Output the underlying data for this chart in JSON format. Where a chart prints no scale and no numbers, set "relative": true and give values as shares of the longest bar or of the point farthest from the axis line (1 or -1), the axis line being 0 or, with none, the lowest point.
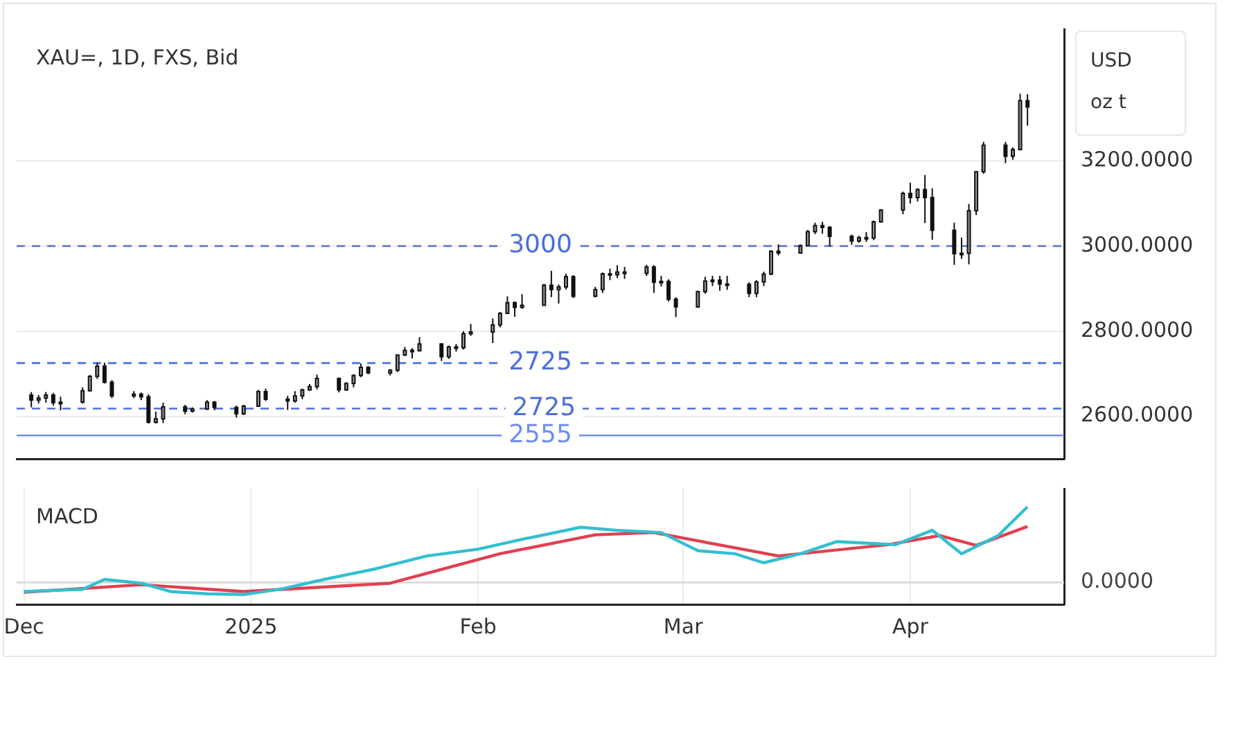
{
  "chart_data": [
    {
      "type": "candlestick",
      "title": "XAU=, 1D, FXS, Bid",
      "ylabel": "USD oz t",
      "x": [
        "2024-12-02",
        "2024-12-03",
        "2024-12-04",
        "2024-12-05",
        "2024-12-06",
        "2024-12-09",
        "2024-12-10",
        "2024-12-11",
        "2024-12-12",
        "2024-12-13",
        "2024-12-16",
        "2024-12-17",
        "2024-12-18",
        "2024-12-19",
        "2024-12-20",
        "2024-12-23",
        "2024-12-24",
        "2024-12-26",
        "2024-12-27",
        "2024-12-30",
        "2024-12-31",
        "2025-01-02",
        "2025-01-03",
        "2025-01-06",
        "2025-01-07",
        "2025-01-08",
        "2025-01-09",
        "2025-01-10",
        "2025-01-13",
        "2025-01-14",
        "2025-01-15",
        "2025-01-16",
        "2025-01-17",
        "2025-01-20",
        "2025-01-21",
        "2025-01-22",
        "2025-01-23",
        "2025-01-24",
        "2025-01-27",
        "2025-01-28",
        "2025-01-29",
        "2025-01-30",
        "2025-01-31",
        "2025-02-03",
        "2025-02-04",
        "2025-02-05",
        "2025-02-06",
        "2025-02-07",
        "2025-02-10",
        "2025-02-11",
        "2025-02-12",
        "2025-02-13",
        "2025-02-14",
        "2025-02-17",
        "2025-02-18",
        "2025-02-19",
        "2025-02-20",
        "2025-02-21",
        "2025-02-24",
        "2025-02-25",
        "2025-02-26",
        "2025-02-27",
        "2025-02-28",
        "2025-03-03",
        "2025-03-04",
        "2025-03-05",
        "2025-03-06",
        "2025-03-07",
        "2025-03-10",
        "2025-03-11",
        "2025-03-12",
        "2025-03-13",
        "2025-03-14",
        "2025-03-17",
        "2025-03-18",
        "2025-03-19",
        "2025-03-20",
        "2025-03-21",
        "2025-03-24",
        "2025-03-25",
        "2025-03-26",
        "2025-03-27",
        "2025-03-28",
        "2025-03-31",
        "2025-04-01",
        "2025-04-02",
        "2025-04-03",
        "2025-04-04",
        "2025-04-07",
        "2025-04-08",
        "2025-04-09",
        "2025-04-10",
        "2025-04-11",
        "2025-04-14",
        "2025-04-15",
        "2025-04-16",
        "2025-04-17"
      ],
      "ohlc": [
        [
          2650,
          2657,
          2621,
          2638
        ],
        [
          2638,
          2650,
          2630,
          2643
        ],
        [
          2643,
          2657,
          2632,
          2650
        ],
        [
          2650,
          2655,
          2625,
          2632
        ],
        [
          2632,
          2646,
          2614,
          2633
        ],
        [
          2633,
          2668,
          2630,
          2660
        ],
        [
          2660,
          2697,
          2658,
          2694
        ],
        [
          2694,
          2726,
          2688,
          2718
        ],
        [
          2718,
          2726,
          2677,
          2680
        ],
        [
          2680,
          2685,
          2643,
          2648
        ],
        [
          2648,
          2659,
          2643,
          2652
        ],
        [
          2652,
          2656,
          2638,
          2646
        ],
        [
          2646,
          2652,
          2583,
          2586
        ],
        [
          2586,
          2611,
          2583,
          2594
        ],
        [
          2594,
          2632,
          2584,
          2622
        ],
        [
          2622,
          2627,
          2605,
          2612
        ],
        [
          2612,
          2621,
          2609,
          2617
        ],
        [
          2617,
          2638,
          2615,
          2633
        ],
        [
          2633,
          2636,
          2614,
          2621
        ],
        [
          2621,
          2625,
          2597,
          2606
        ],
        [
          2606,
          2627,
          2603,
          2624
        ],
        [
          2624,
          2662,
          2623,
          2658
        ],
        [
          2658,
          2665,
          2636,
          2640
        ],
        [
          2640,
          2648,
          2615,
          2636
        ],
        [
          2636,
          2659,
          2632,
          2648
        ],
        [
          2648,
          2665,
          2640,
          2662
        ],
        [
          2662,
          2676,
          2660,
          2670
        ],
        [
          2670,
          2698,
          2663,
          2689
        ],
        [
          2689,
          2691,
          2656,
          2662
        ],
        [
          2662,
          2680,
          2660,
          2677
        ],
        [
          2677,
          2699,
          2668,
          2696
        ],
        [
          2696,
          2724,
          2692,
          2715
        ],
        [
          2715,
          2718,
          2699,
          2702
        ],
        [
          2702,
          2711,
          2696,
          2708
        ],
        [
          2708,
          2745,
          2704,
          2744
        ],
        [
          2744,
          2763,
          2742,
          2755
        ],
        [
          2755,
          2760,
          2736,
          2754
        ],
        [
          2754,
          2786,
          2752,
          2770
        ],
        [
          2770,
          2772,
          2730,
          2740
        ],
        [
          2740,
          2766,
          2735,
          2763
        ],
        [
          2763,
          2770,
          2752,
          2761
        ],
        [
          2761,
          2800,
          2757,
          2794
        ],
        [
          2794,
          2817,
          2789,
          2798
        ],
        [
          2798,
          2830,
          2772,
          2815
        ],
        [
          2815,
          2845,
          2809,
          2842
        ],
        [
          2842,
          2882,
          2840,
          2867
        ],
        [
          2867,
          2870,
          2834,
          2856
        ],
        [
          2856,
          2887,
          2853,
          2861
        ],
        [
          2861,
          2911,
          2860,
          2908
        ],
        [
          2908,
          2942,
          2880,
          2898
        ],
        [
          2898,
          2910,
          2865,
          2904
        ],
        [
          2904,
          2935,
          2898,
          2928
        ],
        [
          2928,
          2932,
          2878,
          2882
        ],
        [
          2882,
          2904,
          2880,
          2898
        ],
        [
          2898,
          2938,
          2890,
          2935
        ],
        [
          2935,
          2947,
          2920,
          2933
        ],
        [
          2933,
          2955,
          2925,
          2939
        ],
        [
          2939,
          2951,
          2923,
          2936
        ],
        [
          2936,
          2956,
          2930,
          2951
        ],
        [
          2951,
          2955,
          2890,
          2915
        ],
        [
          2915,
          2930,
          2905,
          2917
        ],
        [
          2917,
          2922,
          2870,
          2875
        ],
        [
          2875,
          2880,
          2833,
          2857
        ],
        [
          2857,
          2895,
          2855,
          2893
        ],
        [
          2893,
          2928,
          2888,
          2918
        ],
        [
          2918,
          2930,
          2906,
          2920
        ],
        [
          2920,
          2930,
          2895,
          2911
        ],
        [
          2911,
          2930,
          2897,
          2910
        ],
        [
          2910,
          2915,
          2880,
          2889
        ],
        [
          2889,
          2920,
          2880,
          2916
        ],
        [
          2916,
          2940,
          2906,
          2934
        ],
        [
          2934,
          2990,
          2932,
          2988
        ],
        [
          2988,
          3004,
          2978,
          2984
        ],
        [
          2984,
          3004,
          2982,
          3001
        ],
        [
          3001,
          3038,
          2999,
          3034
        ],
        [
          3034,
          3055,
          3028,
          3048
        ],
        [
          3048,
          3057,
          3029,
          3044
        ],
        [
          3044,
          3047,
          2999,
          3023
        ],
        [
          3023,
          3027,
          3003,
          3012
        ],
        [
          3012,
          3024,
          3008,
          3020
        ],
        [
          3020,
          3033,
          3010,
          3019
        ],
        [
          3019,
          3060,
          3014,
          3057
        ],
        [
          3057,
          3087,
          3055,
          3085
        ],
        [
          3085,
          3128,
          3075,
          3124
        ],
        [
          3124,
          3149,
          3100,
          3114
        ],
        [
          3114,
          3136,
          3105,
          3133
        ],
        [
          3133,
          3167,
          3054,
          3114
        ],
        [
          3114,
          3136,
          3015,
          3037
        ],
        [
          3037,
          3055,
          2956,
          2982
        ],
        [
          2982,
          3020,
          2970,
          2983
        ],
        [
          2983,
          3099,
          2957,
          3083
        ],
        [
          3083,
          3176,
          3073,
          3175
        ],
        [
          3175,
          3245,
          3170,
          3237
        ],
        [
          3237,
          3245,
          3195,
          3211
        ],
        [
          3211,
          3232,
          3203,
          3227
        ],
        [
          3227,
          3358,
          3225,
          3342
        ],
        [
          3342,
          3357,
          3283,
          3327
        ]
      ],
      "xlim": [
        "2024-11-30",
        "2025-04-22"
      ],
      "xticks": [
        {
          "value": "2024-12-01",
          "label": null
        },
        {
          "value": "2025-01-01",
          "label": null
        },
        {
          "value": "2025-02-01",
          "label": null
        },
        {
          "value": "2025-03-01",
          "label": null
        },
        {
          "value": "2025-04-01",
          "label": null
        }
      ],
      "ylim": [
        2500,
        3510
      ],
      "yticks": [
        {
          "value": 2600,
          "label": "2600.0000"
        },
        {
          "value": 2800,
          "label": "2800.0000"
        },
        {
          "value": 3000,
          "label": "3000.0000"
        },
        {
          "value": 3200,
          "label": "3200.0000"
        }
      ],
      "tick_labels": "y",
      "grid": true,
      "legend": false,
      "annotations": [
        {
          "text": "2725",
          "x": "2025-02-10",
          "y": 2618
        }
      ],
      "ref_lines": [
        {
          "axis": "y",
          "value": 3000,
          "label": "3000",
          "color": "#4a6fdc",
          "line_style": "dashed"
        },
        {
          "axis": "y",
          "value": 2725,
          "label": "2725",
          "color": "#4a6fdc",
          "line_style": "dashed"
        },
        {
          "axis": "y",
          "value": 2618,
          "color": "#4a6fdc",
          "line_style": "dashed"
        },
        {
          "axis": "y",
          "value": 2555,
          "label": "2555",
          "color": "#6e8ff0",
          "line_style": "solid"
        }
      ]
    },
    {
      "type": "line",
      "title": "MACD",
      "relative": true,
      "series": [
        {
          "color": "#33bfd0",
          "x": [
            "2024-12-01",
            "2024-12-09",
            "2024-12-12",
            "2024-12-17",
            "2024-12-21",
            "2024-12-26",
            "2024-12-31",
            "2025-01-05",
            "2025-01-11",
            "2025-01-18",
            "2025-01-25",
            "2025-02-01",
            "2025-02-07",
            "2025-02-15",
            "2025-02-20",
            "2025-02-26",
            "2025-03-03",
            "2025-03-08",
            "2025-03-12",
            "2025-03-17",
            "2025-03-22",
            "2025-03-30",
            "2025-04-04",
            "2025-04-08",
            "2025-04-13",
            "2025-04-17"
          ],
          "values": [
            -0.12,
            -0.09,
            0.04,
            -0.01,
            -0.12,
            -0.15,
            -0.16,
            -0.09,
            0.04,
            0.18,
            0.35,
            0.44,
            0.57,
            0.73,
            0.69,
            0.66,
            0.42,
            0.38,
            0.26,
            0.38,
            0.54,
            0.5,
            0.69,
            0.38,
            0.62,
            1
          ]
        },
        {
          "color": "#e04050",
          "x": [
            "2024-12-01",
            "2024-12-17",
            "2024-12-31",
            "2025-01-20",
            "2025-02-04",
            "2025-02-17",
            "2025-02-25",
            "2025-03-14",
            "2025-03-29",
            "2025-04-05",
            "2025-04-10",
            "2025-04-17"
          ],
          "values": [
            -0.13,
            -0.03,
            -0.12,
            -0.01,
            0.38,
            0.63,
            0.66,
            0.35,
            0.5,
            0.62,
            0.49,
            0.74
          ]
        }
      ],
      "xlim": [
        "2024-11-30",
        "2025-04-22"
      ],
      "xticks": [
        {
          "value": "2024-12-01",
          "label": "Dec"
        },
        {
          "value": "2025-01-01",
          "label": "2025"
        },
        {
          "value": "2025-02-01",
          "label": "Feb"
        },
        {
          "value": "2025-03-01",
          "label": "Mar"
        },
        {
          "value": "2025-04-01",
          "label": "Apr"
        }
      ],
      "grid": "x",
      "legend": false,
      "line_style": "solid",
      "marker": "none",
      "ref_lines": [
        {
          "axis": "y",
          "value": 0,
          "label": "0.0000",
          "color": "#d9d9d9",
          "line_style": "solid"
        }
      ]
    }
  ]
}
